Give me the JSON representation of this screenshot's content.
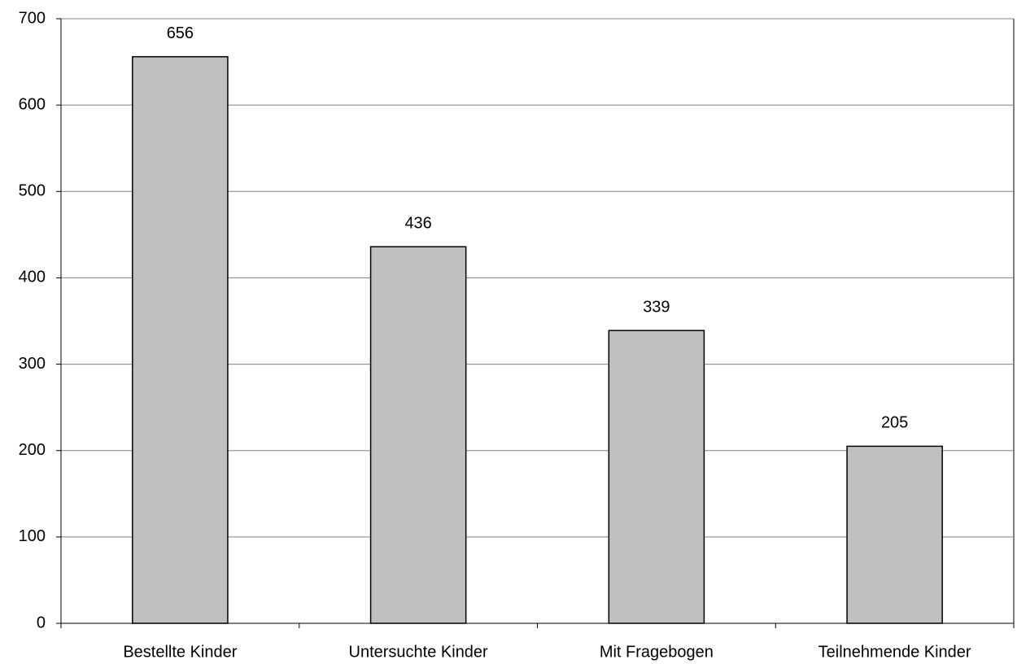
{
  "chart_data": {
    "type": "bar",
    "categories": [
      "Bestellte Kinder",
      "Untersuchte Kinder",
      "Mit Fragebogen",
      "Teilnehmende Kinder"
    ],
    "values": [
      656,
      436,
      339,
      205
    ],
    "color": "#c0c0c0",
    "ylim": [
      0,
      700
    ],
    "yticks": [
      0,
      100,
      200,
      300,
      400,
      500,
      600,
      700
    ],
    "grid": true
  }
}
